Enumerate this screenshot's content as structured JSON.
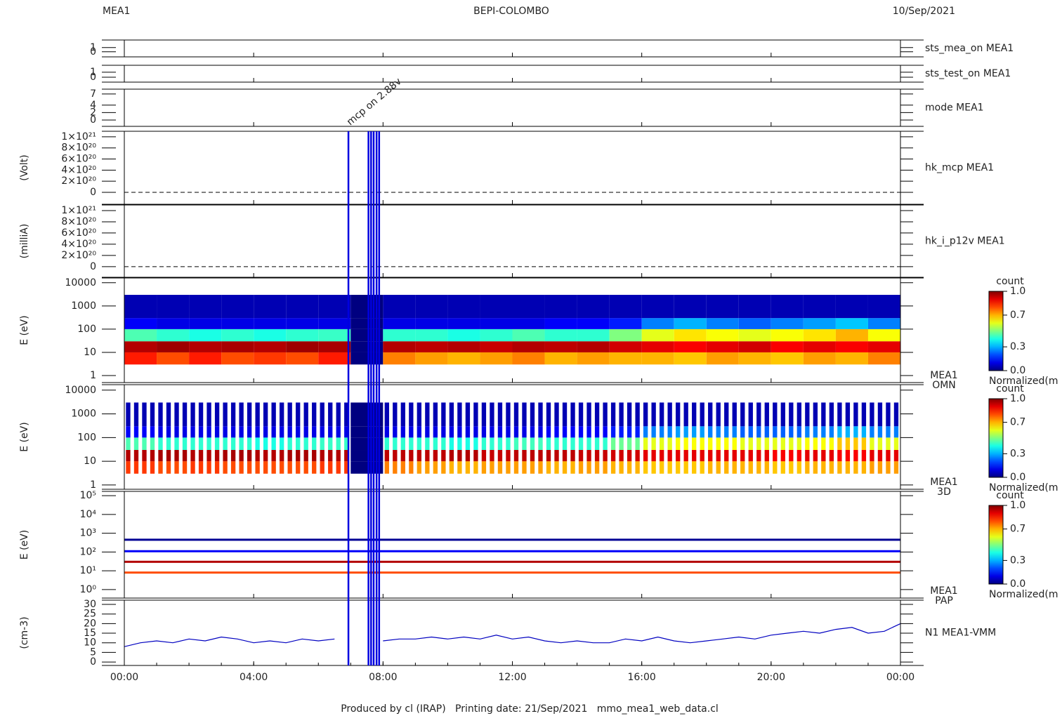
{
  "header": {
    "left": "MEA1",
    "center": "BEPI-COLOMBO",
    "right": "10/Sep/2021"
  },
  "footer": "Produced by cl (IRAP)   Printing date: 21/Sep/2021   mmo_mea1_web_data.cl",
  "xlim": [
    0,
    24
  ],
  "xticks": [
    {
      "value": 0,
      "label": "00:00"
    },
    {
      "value": 4,
      "label": "04:00"
    },
    {
      "value": 8,
      "label": "08:00"
    },
    {
      "value": 12,
      "label": "12:00"
    },
    {
      "value": 16,
      "label": "16:00"
    },
    {
      "value": 20,
      "label": "20:00"
    },
    {
      "value": 24,
      "label": "00:00"
    }
  ],
  "events": {
    "times": [
      6.93,
      7.55,
      7.63,
      7.71,
      7.8,
      7.88
    ],
    "label": "mcp on 2.88v",
    "color": "#0000e0"
  },
  "colorbar": {
    "label": "count",
    "caption": "Normalized(m",
    "ticks": [
      {
        "value": 0,
        "label": "0.0"
      },
      0.3,
      0.7,
      {
        "value": 1,
        "label": "1.0"
      }
    ]
  },
  "chart_data": [
    {
      "type": "status",
      "name": "sts_mea_on MEA1",
      "name_color": "#e00000",
      "ylim": [
        -1.2,
        2.8
      ],
      "yticks": [
        0,
        1
      ]
    },
    {
      "type": "status",
      "name": "sts_test_on MEA1",
      "name_color": "#e00000",
      "ylim": [
        -1,
        2.4
      ],
      "yticks": [
        0,
        1
      ]
    },
    {
      "type": "status",
      "name": "mode MEA1",
      "name_color": "#e00000",
      "ylim": [
        -1.7,
        8.3
      ],
      "yticks": [
        0,
        2,
        4,
        7
      ]
    },
    {
      "type": "status",
      "name": "hk_mcp MEA1",
      "name_color": "#0000c0",
      "ylabel": "(Volt)",
      "hline": 0,
      "ylim": [
        -2.15e+20,
        1.1e+21
      ],
      "yticks": [
        0,
        {
          "value": 2e+20,
          "label": "2×10²⁰"
        },
        {
          "value": 4e+20,
          "label": "4×10²⁰"
        },
        {
          "value": 6e+20,
          "label": "6×10²⁰"
        },
        {
          "value": 8e+20,
          "label": "8×10²⁰"
        },
        {
          "value": 1e+21,
          "label": "1×10²¹"
        }
      ]
    },
    {
      "type": "status",
      "name": "hk_i_p12v MEA1",
      "name_color": "#0000c0",
      "ylabel": "(milliA)",
      "hline": 0,
      "ylim": [
        -1.9e+20,
        1.1e+21
      ],
      "yticks": [
        0,
        {
          "value": 2e+20,
          "label": "2×10²⁰"
        },
        {
          "value": 4e+20,
          "label": "4×10²⁰"
        },
        {
          "value": 6e+20,
          "label": "6×10²⁰"
        },
        {
          "value": 8e+20,
          "label": "8×10²⁰"
        },
        {
          "value": 1e+21,
          "label": "1×10²¹"
        }
      ]
    },
    {
      "type": "heatmap",
      "name": "MEA1",
      "subname": "OMN",
      "ylabel": "E (eV)",
      "log": true,
      "ylim": [
        0.5,
        16000
      ],
      "yticks": [
        1,
        10,
        100,
        1000,
        10000
      ],
      "xbins": [
        0,
        1,
        2,
        3,
        4,
        5,
        6,
        7,
        8,
        9,
        10,
        11,
        12,
        13,
        14,
        15,
        16,
        17,
        18,
        19,
        20,
        21,
        22,
        23,
        24
      ],
      "ybins": [
        3,
        10,
        30,
        100,
        300,
        3000
      ],
      "z": [
        [
          0.85,
          0.8,
          0.85,
          0.8,
          0.82,
          0.8,
          0.85,
          0,
          0.75,
          0.72,
          0.7,
          0.72,
          0.75,
          0.7,
          0.72,
          0.7,
          0.7,
          0.68,
          0.72,
          0.7,
          0.68,
          0.72,
          0.7,
          0.75
        ],
        [
          0.95,
          0.97,
          0.95,
          0.96,
          0.95,
          0.97,
          0.96,
          0,
          0.95,
          0.94,
          0.95,
          0.93,
          0.95,
          0.94,
          0.95,
          0.92,
          0.9,
          0.88,
          0.9,
          0.92,
          0.88,
          0.9,
          0.88,
          0.9
        ],
        [
          0.45,
          0.42,
          0.4,
          0.42,
          0.4,
          0.42,
          0.43,
          0,
          0.42,
          0.42,
          0.4,
          0.42,
          0.45,
          0.42,
          0.42,
          0.5,
          0.6,
          0.65,
          0.62,
          0.6,
          0.62,
          0.65,
          0.7,
          0.62
        ],
        [
          0.12,
          0.1,
          0.1,
          0.1,
          0.1,
          0.1,
          0.1,
          0,
          0.1,
          0.1,
          0.1,
          0.1,
          0.1,
          0.12,
          0.12,
          0.15,
          0.25,
          0.3,
          0.25,
          0.22,
          0.25,
          0.28,
          0.32,
          0.25
        ],
        [
          0.05,
          0.05,
          0.05,
          0.05,
          0.05,
          0.05,
          0.05,
          0,
          0.05,
          0.05,
          0.05,
          0.05,
          0.05,
          0.05,
          0.05,
          0.05,
          0.05,
          0.05,
          0.05,
          0.05,
          0.05,
          0.05,
          0.05,
          0.05
        ]
      ]
    },
    {
      "type": "heatmap",
      "striped": true,
      "name": "MEA1",
      "subname": "3D",
      "ylabel": "E (eV)",
      "log": true,
      "ylim": [
        0.66,
        17000
      ],
      "yticks": [
        1,
        10,
        100,
        1000,
        10000
      ],
      "xbins": [
        0,
        1,
        2,
        3,
        4,
        5,
        6,
        7,
        8,
        9,
        10,
        11,
        12,
        13,
        14,
        15,
        16,
        17,
        18,
        19,
        20,
        21,
        22,
        23,
        24
      ],
      "ybins": [
        3,
        10,
        30,
        100,
        300,
        3000
      ],
      "z": [
        [
          0.82,
          0.8,
          0.82,
          0.8,
          0.8,
          0.8,
          0.82,
          0,
          0.75,
          0.72,
          0.7,
          0.72,
          0.72,
          0.7,
          0.72,
          0.7,
          0.68,
          0.68,
          0.7,
          0.7,
          0.68,
          0.7,
          0.7,
          0.72
        ],
        [
          0.95,
          0.96,
          0.95,
          0.96,
          0.95,
          0.96,
          0.95,
          0,
          0.94,
          0.94,
          0.95,
          0.93,
          0.94,
          0.94,
          0.93,
          0.92,
          0.9,
          0.9,
          0.9,
          0.9,
          0.88,
          0.9,
          0.88,
          0.9
        ],
        [
          0.45,
          0.42,
          0.42,
          0.42,
          0.4,
          0.42,
          0.43,
          0,
          0.42,
          0.42,
          0.4,
          0.42,
          0.44,
          0.42,
          0.42,
          0.48,
          0.6,
          0.62,
          0.62,
          0.6,
          0.6,
          0.62,
          0.68,
          0.6
        ],
        [
          0.12,
          0.1,
          0.1,
          0.1,
          0.1,
          0.1,
          0.1,
          0,
          0.1,
          0.1,
          0.1,
          0.1,
          0.1,
          0.12,
          0.12,
          0.15,
          0.25,
          0.28,
          0.25,
          0.22,
          0.22,
          0.25,
          0.3,
          0.25
        ],
        [
          0.05,
          0.05,
          0.05,
          0.05,
          0.05,
          0.05,
          0.05,
          0,
          0.05,
          0.05,
          0.05,
          0.05,
          0.05,
          0.05,
          0.05,
          0.05,
          0.05,
          0.05,
          0.05,
          0.05,
          0.05,
          0.05,
          0.05,
          0.05
        ]
      ]
    },
    {
      "type": "bands",
      "name": "MEA1",
      "subname": "PAP",
      "ylabel": "E (eV)",
      "log": true,
      "ylim": [
        0.35,
        170000
      ],
      "yticks": [
        {
          "value": 1,
          "label": "10⁰"
        },
        {
          "value": 10,
          "label": "10¹"
        },
        {
          "value": 100,
          "label": "10²"
        },
        {
          "value": 1000,
          "label": "10³"
        },
        {
          "value": 10000,
          "label": "10⁴"
        },
        {
          "value": 100000,
          "label": "10⁵"
        }
      ],
      "energies": [
        8,
        30,
        110,
        450
      ],
      "z": [
        0.8,
        0.95,
        0.12,
        0.02
      ]
    },
    {
      "type": "line",
      "name": "N1 MEA1-VMM",
      "name_color": "#0000c0",
      "color": "#0000c0",
      "ylabel": "(cm-3)",
      "ylim": [
        -1.8,
        32.2
      ],
      "yticks": [
        0,
        5,
        10,
        15,
        20,
        25,
        30
      ],
      "x": [
        0,
        0.5,
        1,
        1.5,
        2,
        2.5,
        3,
        3.5,
        4,
        4.5,
        5,
        5.5,
        6,
        6.5,
        7,
        7.5,
        8,
        8.5,
        9,
        9.5,
        10,
        10.5,
        11,
        11.5,
        12,
        12.5,
        13,
        13.5,
        14,
        14.5,
        15,
        15.5,
        16,
        16.5,
        17,
        17.5,
        18,
        18.5,
        19,
        19.5,
        20,
        20.5,
        21,
        21.5,
        22,
        22.5,
        23,
        23.5,
        24
      ],
      "values": [
        8,
        10,
        11,
        10,
        12,
        11,
        13,
        12,
        10,
        11,
        10,
        12,
        11,
        12,
        null,
        null,
        11,
        12,
        12,
        13,
        12,
        13,
        12,
        14,
        12,
        13,
        11,
        10,
        11,
        10,
        10,
        12,
        11,
        13,
        11,
        10,
        11,
        12,
        13,
        12,
        14,
        15,
        16,
        15,
        17,
        18,
        15,
        16,
        20
      ]
    }
  ]
}
